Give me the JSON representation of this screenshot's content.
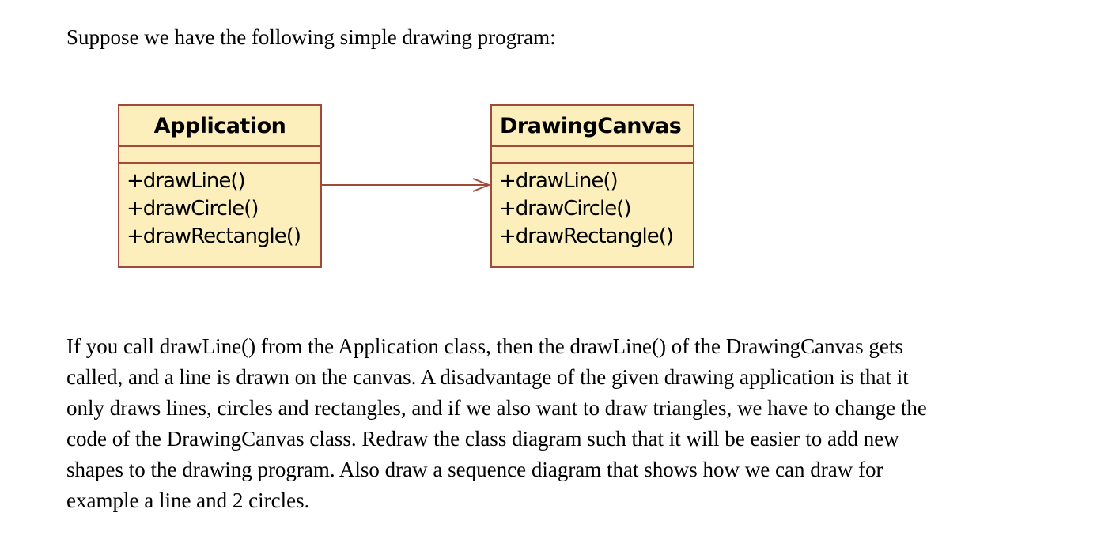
{
  "intro_text": "Suppose we have the following simple drawing program:",
  "diagram": {
    "classes": [
      {
        "name": "Application",
        "operations": [
          "+drawLine()",
          "+drawCircle()",
          "+drawRectangle()"
        ]
      },
      {
        "name": "DrawingCanvas",
        "operations": [
          "+drawLine()",
          "+drawCircle()",
          "+drawRectangle()"
        ]
      }
    ],
    "association": {
      "from": "Application",
      "to": "DrawingCanvas",
      "arrowhead": "open"
    },
    "colors": {
      "class_fill": "#fcefbc",
      "class_border": "#a14a3c",
      "association_line": "#a14a3c"
    }
  },
  "paragraph_lines": [
    "If you call drawLine() from the Application class, then the drawLine() of the DrawingCanvas gets",
    "called, and a line is drawn on the canvas. A disadvantage of the given drawing application is that it",
    "only draws lines, circles and rectangles, and if we also want to draw triangles, we have to change the",
    "code of the DrawingCanvas class. Redraw the class diagram such that it will be easier to add new",
    "shapes to the drawing program. Also draw a sequence diagram that shows how we can draw for",
    "example a line and 2 circles."
  ]
}
